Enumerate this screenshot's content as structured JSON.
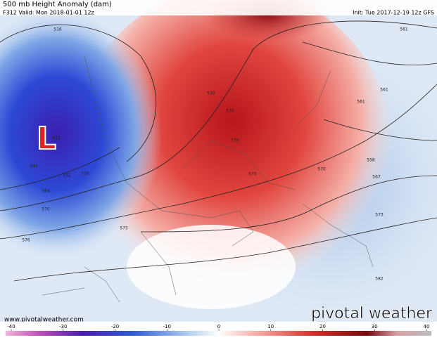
{
  "header": {
    "title": "500 mb Height Anomaly (dam)",
    "valid": "F312 Valid: Mon 2018-01-01 12z",
    "init": "Init: Tue 2017-12-19 12z GFS"
  },
  "low": {
    "label": "L"
  },
  "contour_labels": [
    516,
    543,
    540,
    552,
    558,
    564,
    570,
    576,
    573,
    570,
    576,
    579,
    570,
    570,
    561,
    561,
    561,
    558,
    567,
    573,
    582
  ],
  "footer": {
    "url": "www.pivotalweather.com",
    "logo": "pivotal weather"
  },
  "colorbar": {
    "lim": [
      -40,
      40
    ],
    "ticks": [
      -40,
      -30,
      -20,
      -10,
      0,
      10,
      20,
      30,
      40
    ]
  }
}
